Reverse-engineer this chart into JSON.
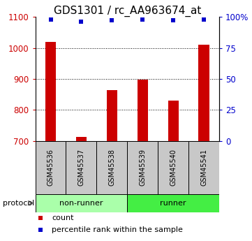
{
  "title": "GDS1301 / rc_AA963674_at",
  "samples": [
    "GSM45536",
    "GSM45537",
    "GSM45538",
    "GSM45539",
    "GSM45540",
    "GSM45541"
  ],
  "counts": [
    1020,
    712,
    865,
    898,
    830,
    1010
  ],
  "percentile_ranks": [
    98,
    96,
    97,
    98,
    97,
    98
  ],
  "ylim_left": [
    700,
    1100
  ],
  "ylim_right": [
    0,
    100
  ],
  "yticks_left": [
    700,
    800,
    900,
    1000,
    1100
  ],
  "yticks_right": [
    0,
    25,
    50,
    75,
    100
  ],
  "ytick_labels_right": [
    "0",
    "25",
    "50",
    "75",
    "100%"
  ],
  "bar_color": "#cc0000",
  "dot_color": "#0000cc",
  "group_colors_nonrunner": "#aaffaa",
  "group_colors_runner": "#44ee44",
  "label_bg_color": "#c8c8c8",
  "protocol_label": "protocol",
  "legend_count": "count",
  "legend_percentile": "percentile rank within the sample",
  "title_fontsize": 11,
  "tick_fontsize": 8.5,
  "label_fontsize": 8,
  "group_fontsize": 8
}
